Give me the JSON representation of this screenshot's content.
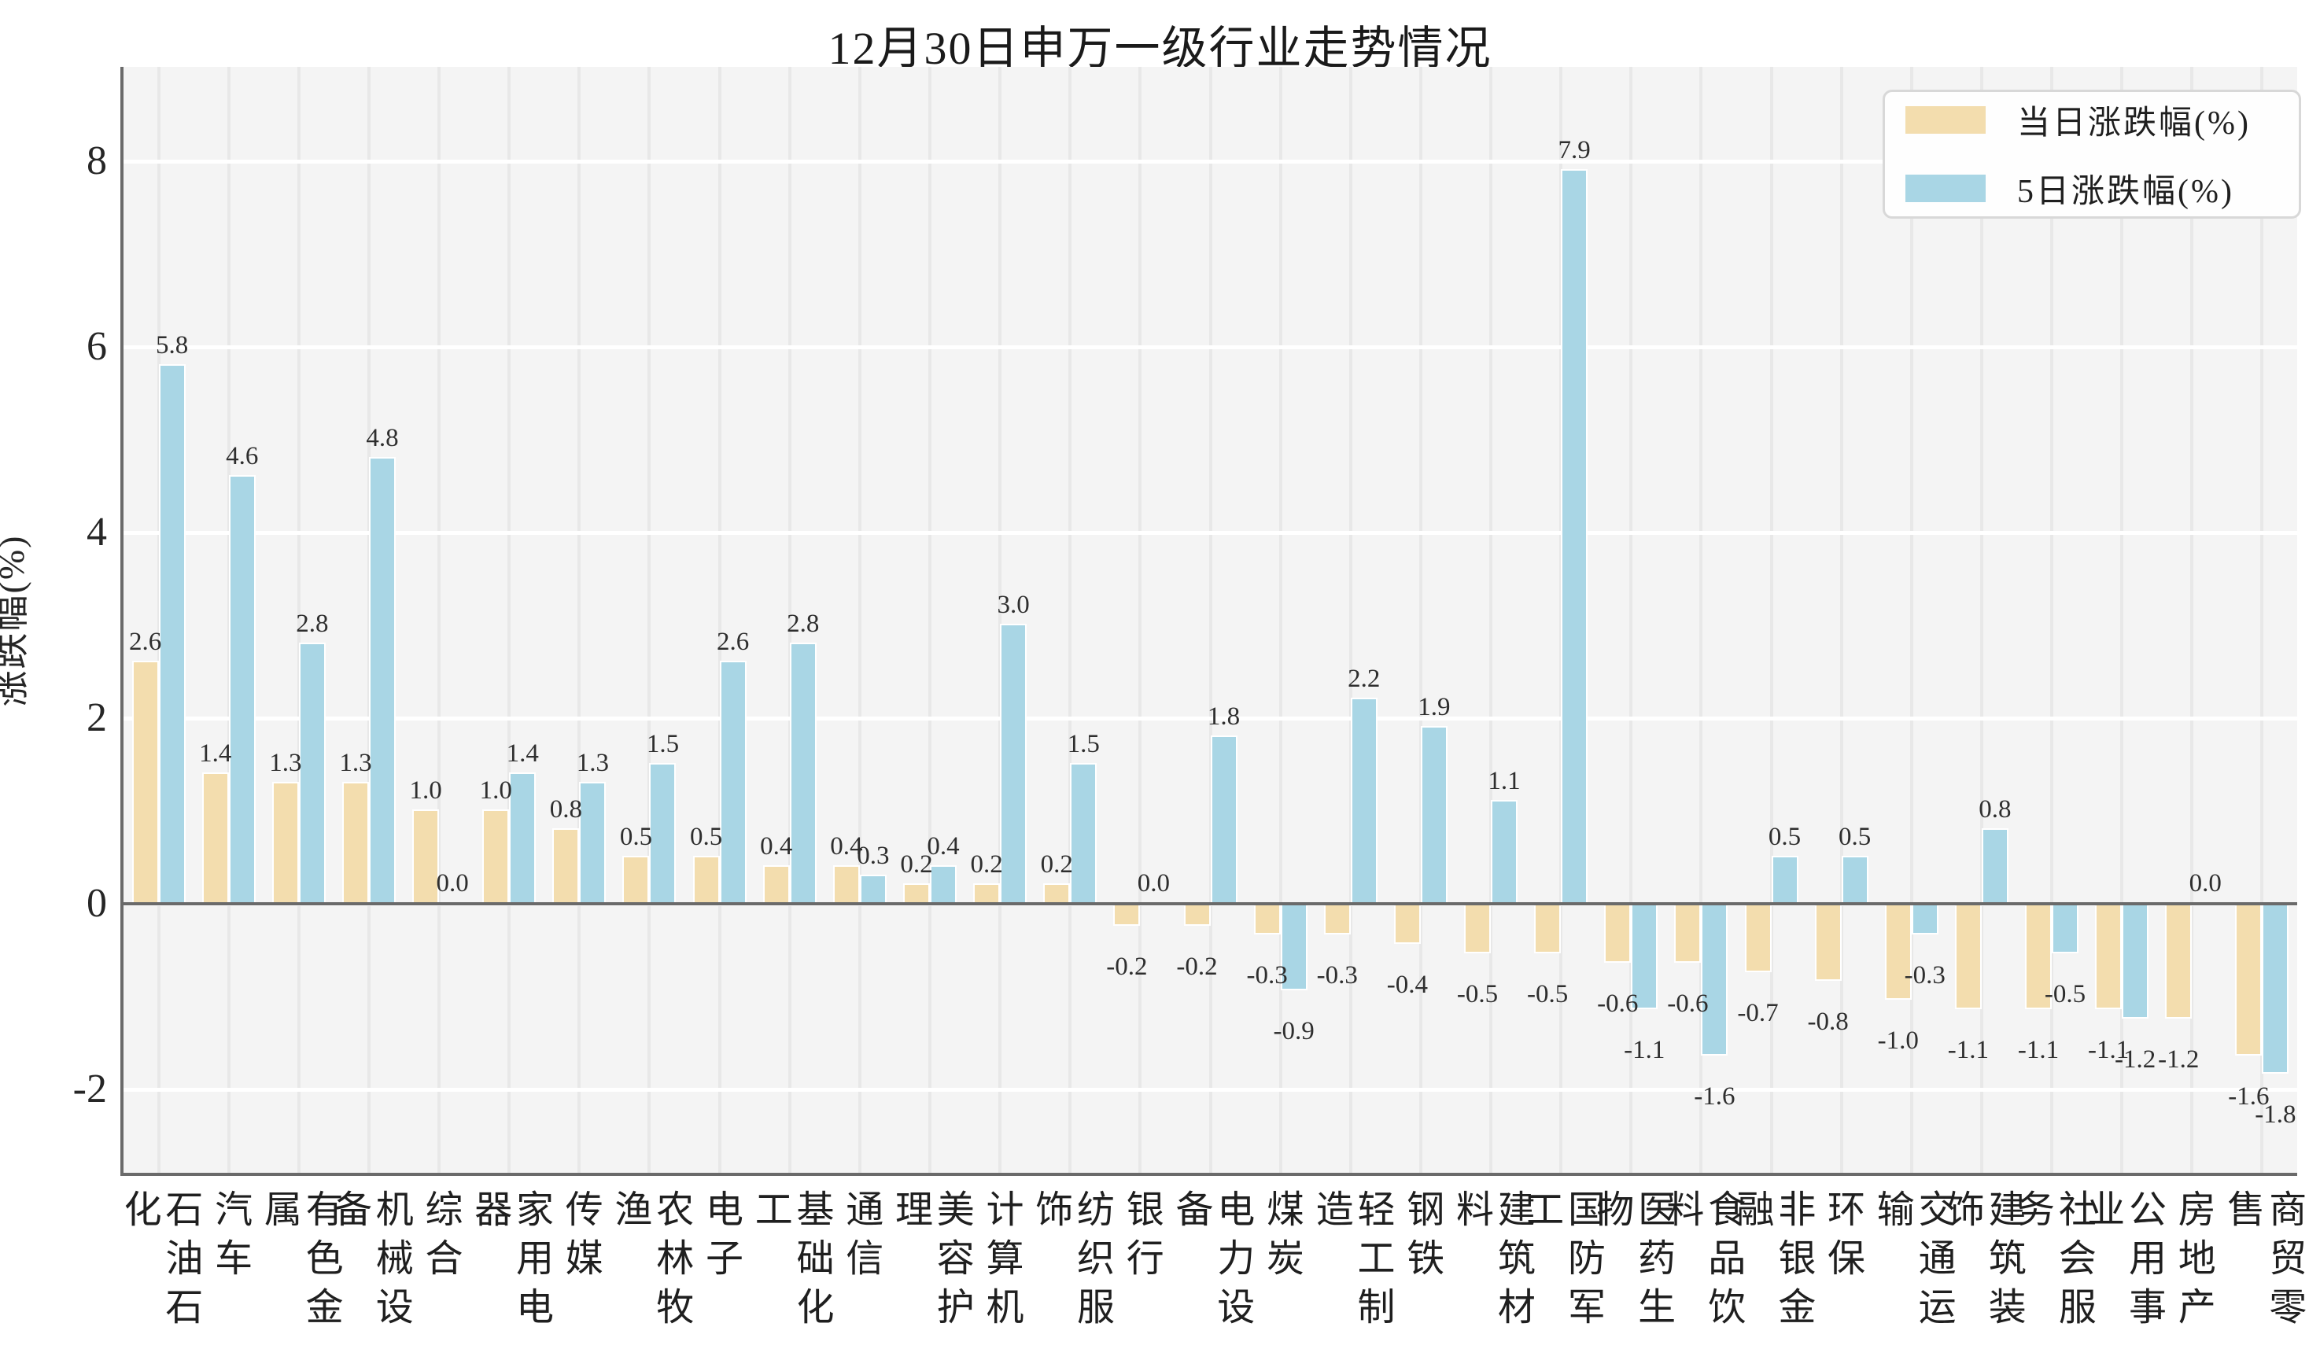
{
  "title": "12月30日申万一级行业走势情况",
  "y_axis": {
    "label": "涨跌幅(%)"
  },
  "legend": {
    "items": [
      {
        "label": "当日涨跌幅(%)",
        "color": "#f3ddae"
      },
      {
        "label": "5日涨跌幅(%)",
        "color": "#a9d6e5"
      }
    ]
  },
  "chart_data": {
    "type": "bar",
    "title": "12月30日申万一级行业走势情况",
    "xlabel": "",
    "ylabel": "涨跌幅(%)",
    "categories": [
      "石油石化",
      "汽车",
      "有色金属",
      "机械设备",
      "综合",
      "家用电器",
      "传媒",
      "农林牧渔",
      "电子",
      "基础化工",
      "通信",
      "美容护理",
      "计算机",
      "纺织服饰",
      "银行",
      "电力设备",
      "煤炭",
      "轻工制造",
      "钢铁",
      "建筑材料",
      "国防军工",
      "医药生物",
      "食品饮料",
      "非银金融",
      "环保",
      "交通运输",
      "建筑装饰",
      "社会服务",
      "公用事业",
      "房地产",
      "商贸零售"
    ],
    "series": [
      {
        "name": "当日涨跌幅(%)",
        "color": "#f3ddae",
        "values": [
          2.6,
          1.4,
          1.3,
          1.3,
          1.0,
          1.0,
          0.8,
          0.5,
          0.5,
          0.4,
          0.4,
          0.2,
          0.2,
          0.2,
          -0.2,
          -0.2,
          -0.3,
          -0.3,
          -0.4,
          -0.5,
          -0.5,
          -0.6,
          -0.6,
          -0.7,
          -0.8,
          -1.0,
          -1.1,
          -1.1,
          -1.1,
          -1.2,
          -1.6
        ]
      },
      {
        "name": "5日涨跌幅(%)",
        "color": "#a9d6e5",
        "values": [
          5.8,
          4.6,
          2.8,
          4.8,
          0.0,
          1.4,
          1.3,
          1.5,
          2.6,
          2.8,
          0.3,
          0.4,
          3.0,
          1.5,
          0.0,
          1.8,
          -0.9,
          2.2,
          1.9,
          1.1,
          7.9,
          -1.1,
          -1.6,
          0.5,
          0.5,
          -0.3,
          0.8,
          -0.5,
          -1.2,
          0.0,
          -1.8
        ]
      }
    ],
    "yticks": [
      8,
      6,
      4,
      2,
      0,
      -2
    ],
    "ylim": [
      -2.92,
      9.02
    ],
    "grid": {
      "horizontal": "white",
      "vertical": "light-gray"
    },
    "legend_position": "top-right",
    "value_labels": "one-decimal, above positive bars, below negative bars",
    "colors": {
      "plot_background": "#f4f4f4",
      "vertical_grid": "#e8e8e8",
      "horizontal_grid": "#ffffff",
      "axis_spine": "#6a6a6a",
      "text": "#262626"
    }
  }
}
